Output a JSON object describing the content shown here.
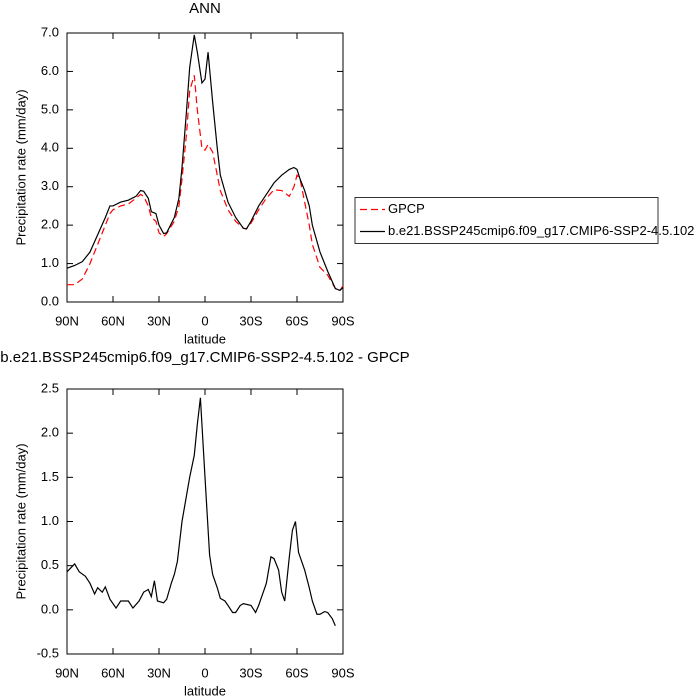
{
  "chart_data": [
    {
      "type": "line",
      "title": "ANN",
      "x_label": "latitude",
      "y_label": "Precipitation rate (mm/day)",
      "x": [
        90,
        85,
        80,
        75,
        70,
        65,
        62,
        60,
        55,
        50,
        45,
        42,
        40,
        37,
        35,
        32,
        30,
        27,
        25,
        20,
        17,
        15,
        12,
        10,
        7,
        5,
        2,
        0,
        -2,
        -5,
        -8,
        -10,
        -15,
        -20,
        -25,
        -27,
        -30,
        -35,
        -40,
        -45,
        -50,
        -55,
        -58,
        -60,
        -62,
        -65,
        -68,
        -70,
        -75,
        -80,
        -85,
        -88,
        -90
      ],
      "series": [
        {
          "name": "GPCP",
          "color": "#ff0000",
          "dashed": true,
          "values": [
            0.45,
            0.45,
            0.6,
            1.0,
            1.5,
            2.0,
            2.3,
            2.4,
            2.5,
            2.55,
            2.7,
            2.8,
            2.75,
            2.5,
            2.2,
            2.1,
            1.8,
            1.7,
            1.78,
            2.1,
            2.5,
            3.2,
            4.4,
            5.5,
            5.9,
            5.0,
            4.0,
            3.95,
            4.1,
            3.9,
            3.3,
            2.9,
            2.4,
            2.1,
            1.92,
            1.9,
            2.05,
            2.4,
            2.7,
            2.92,
            2.9,
            2.75,
            3.0,
            3.3,
            3.2,
            2.6,
            2.0,
            1.5,
            0.9,
            0.7,
            0.35,
            0.3,
            0.42
          ]
        },
        {
          "name": "b.e21.BSSP245cmip6.f09_g17.CMIP6-SSP2-4.5.102",
          "color": "#000000",
          "dashed": false,
          "values": [
            0.88,
            0.95,
            1.05,
            1.3,
            1.75,
            2.2,
            2.5,
            2.5,
            2.6,
            2.65,
            2.75,
            2.9,
            2.88,
            2.7,
            2.35,
            2.3,
            2.0,
            1.78,
            1.8,
            2.2,
            2.7,
            3.5,
            5.0,
            6.1,
            6.95,
            6.5,
            5.7,
            5.8,
            6.5,
            5.2,
            4.0,
            3.3,
            2.6,
            2.2,
            1.92,
            1.9,
            2.1,
            2.5,
            2.8,
            3.1,
            3.3,
            3.45,
            3.5,
            3.45,
            3.2,
            2.9,
            2.5,
            2.0,
            1.3,
            0.8,
            0.35,
            0.3,
            0.38
          ]
        }
      ],
      "xlim": [
        90,
        -90
      ],
      "xticks": [
        {
          "value": 90,
          "label": "90N"
        },
        {
          "value": 60,
          "label": "60N"
        },
        {
          "value": 30,
          "label": "30N"
        },
        0,
        {
          "value": -30,
          "label": "30S"
        },
        {
          "value": -60,
          "label": "60S"
        },
        {
          "value": -90,
          "label": "90S"
        }
      ],
      "ylim": [
        0,
        7
      ],
      "yticks": [
        {
          "value": 0,
          "label": "0.0"
        },
        {
          "value": 1,
          "label": "1.0"
        },
        {
          "value": 2,
          "label": "2.0"
        },
        {
          "value": 3,
          "label": "3.0"
        },
        {
          "value": 4,
          "label": "4.0"
        },
        {
          "value": 5,
          "label": "5.0"
        },
        {
          "value": 6,
          "label": "6.0"
        },
        {
          "value": 7,
          "label": "7.0"
        }
      ],
      "legend": "right"
    },
    {
      "type": "line",
      "title": "b.e21.BSSP245cmip6.f09_g17.CMIP6-SSP2-4.5.102 - GPCP",
      "x_label": "latitude",
      "y_label": "Precipitation rate (mm/day)",
      "x": [
        90,
        85,
        82,
        78,
        75,
        72,
        70,
        67,
        65,
        62,
        58,
        55,
        50,
        47,
        43,
        40,
        37,
        35,
        33,
        31,
        27,
        25,
        22,
        20,
        18,
        15,
        12,
        10,
        7,
        5,
        3,
        0,
        -3,
        -5,
        -8,
        -10,
        -13,
        -15,
        -18,
        -20,
        -23,
        -25,
        -30,
        -33,
        -35,
        -40,
        -43,
        -45,
        -48,
        -50,
        -52,
        -55,
        -57,
        -59,
        -61,
        -65,
        -68,
        -70,
        -73,
        -75,
        -78,
        -80,
        -83,
        -85
      ],
      "series": [
        {
          "color": "#000000",
          "dashed": false,
          "values": [
            0.43,
            0.52,
            0.43,
            0.38,
            0.3,
            0.18,
            0.25,
            0.2,
            0.26,
            0.12,
            0.02,
            0.1,
            0.1,
            0.02,
            0.1,
            0.2,
            0.23,
            0.15,
            0.33,
            0.1,
            0.08,
            0.12,
            0.3,
            0.4,
            0.55,
            1.0,
            1.3,
            1.5,
            1.75,
            2.1,
            2.4,
            1.5,
            0.62,
            0.4,
            0.25,
            0.13,
            0.1,
            0.05,
            -0.03,
            -0.03,
            0.05,
            0.07,
            0.05,
            -0.03,
            0.05,
            0.3,
            0.6,
            0.58,
            0.45,
            0.2,
            0.1,
            0.6,
            0.9,
            1.0,
            0.65,
            0.45,
            0.25,
            0.1,
            -0.05,
            -0.05,
            -0.02,
            -0.03,
            -0.1,
            -0.18
          ]
        }
      ],
      "xlim": [
        90,
        -90
      ],
      "xticks": [
        {
          "value": 90,
          "label": "90N"
        },
        {
          "value": 60,
          "label": "60N"
        },
        {
          "value": 30,
          "label": "30N"
        },
        0,
        {
          "value": -30,
          "label": "30S"
        },
        {
          "value": -60,
          "label": "60S"
        },
        {
          "value": -90,
          "label": "90S"
        }
      ],
      "ylim": [
        -0.5,
        2.5
      ],
      "yticks": [
        {
          "value": -0.5,
          "label": "-0.5"
        },
        {
          "value": 0,
          "label": "0.0"
        },
        0.5,
        {
          "value": 1,
          "label": "1.0"
        },
        1.5,
        {
          "value": 2,
          "label": "2.0"
        },
        2.5
      ]
    }
  ]
}
